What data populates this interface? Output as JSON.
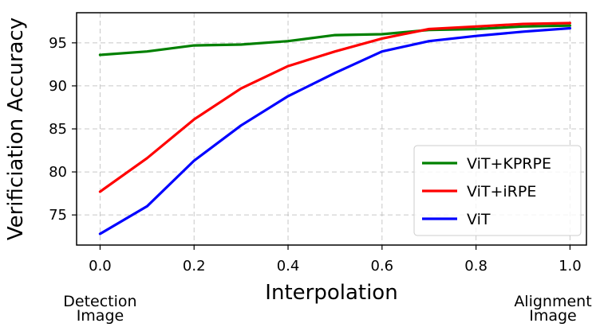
{
  "chart_data": {
    "type": "line",
    "xlabel": "Interpolation",
    "ylabel": "Verificiation Accuracy",
    "x": [
      0.0,
      0.1,
      0.2,
      0.3,
      0.4,
      0.5,
      0.6,
      0.7,
      0.8,
      0.9,
      1.0
    ],
    "xlim": [
      -0.05,
      1.035
    ],
    "ylim": [
      71.5,
      98.5
    ],
    "xticks": [
      "0.0",
      "0.2",
      "0.4",
      "0.6",
      "0.8",
      "1.0"
    ],
    "yticks": [
      "75",
      "80",
      "85",
      "90",
      "95"
    ],
    "grid": true,
    "legend_position": "lower-right",
    "series": [
      {
        "name": "ViT+KPRPE",
        "color": "#008000",
        "values": [
          93.6,
          94.0,
          94.7,
          94.8,
          95.2,
          95.9,
          96.0,
          96.5,
          96.6,
          96.9,
          97.0
        ]
      },
      {
        "name": "ViT+iRPE",
        "color": "#ff0000",
        "values": [
          77.7,
          81.6,
          86.1,
          89.7,
          92.3,
          94.0,
          95.5,
          96.6,
          96.9,
          97.2,
          97.3
        ]
      },
      {
        "name": "ViT",
        "color": "#0000ff",
        "values": [
          72.8,
          76.0,
          81.3,
          85.4,
          88.8,
          91.5,
          94.0,
          95.2,
          95.8,
          96.3,
          96.7
        ]
      }
    ],
    "annotations": {
      "left": [
        "Detection",
        "Image"
      ],
      "right": [
        "Alignment",
        "Image"
      ]
    }
  }
}
